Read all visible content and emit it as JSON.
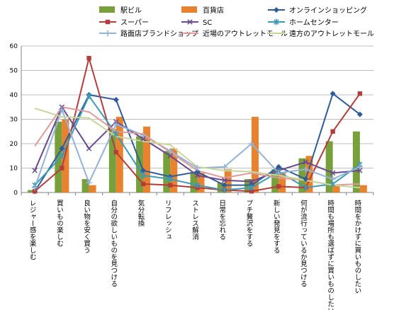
{
  "chart_data": {
    "type": "bar",
    "categories": [
      "レジャー感を楽しむ",
      "買いもの楽しむ",
      "良い物を安く買う",
      "自分の欲しいものを見つける",
      "気分転換",
      "リフレッシュ",
      "ストレス解消",
      "日常を忘れる",
      "プチ贅沢をする",
      "新しい発見をする",
      "何が流行っているか見つける",
      "時間も場所も選ばずに買いものしたい",
      "時間をかけずに買いものしたい"
    ],
    "ylim": [
      0,
      60
    ],
    "yticks": [
      0,
      10,
      20,
      30,
      40,
      50,
      60
    ],
    "grid": true,
    "legend_position": "top",
    "series": [
      {
        "name": "駅ビル",
        "type": "bar",
        "color": "#77A03C",
        "values": [
          1,
          29,
          5.5,
          26,
          23,
          17,
          8,
          4,
          5.5,
          9.5,
          14,
          21,
          25
        ]
      },
      {
        "name": "百貨店",
        "type": "bar",
        "color": "#E8822F",
        "values": [
          0,
          30,
          3,
          31,
          27,
          18,
          8,
          9.5,
          31,
          8,
          15,
          3,
          3
        ]
      },
      {
        "name": "オンラインショッピング",
        "type": "line",
        "color": "#2E5C9A",
        "marker": "diamond",
        "values": [
          0.5,
          18,
          40,
          38,
          9,
          6.5,
          8.5,
          3,
          3,
          10.5,
          5.5,
          40.5,
          32
        ]
      },
      {
        "name": "スーパー",
        "type": "line",
        "color": "#B43C3C",
        "marker": "square",
        "values": [
          0.5,
          10,
          55,
          16.5,
          3.5,
          3,
          2,
          1,
          0.5,
          2.5,
          2,
          25,
          40.5
        ]
      },
      {
        "name": "SC",
        "type": "line",
        "color": "#6A4A8E",
        "marker": "x",
        "values": [
          9,
          35,
          18,
          29,
          22,
          15,
          7,
          5,
          4.5,
          9,
          12.5,
          8,
          9
        ]
      },
      {
        "name": "ホームセンター",
        "type": "line",
        "color": "#3D9BB5",
        "marker": "star",
        "values": [
          3,
          15,
          39.5,
          24,
          7,
          5.5,
          3,
          1,
          2,
          8.5,
          2,
          3.5,
          11.5
        ]
      },
      {
        "name": "路面店ブランドショップ",
        "type": "line",
        "color": "#94B2D8",
        "marker": "plus",
        "values": [
          2,
          34,
          4,
          28,
          23.5,
          17,
          10,
          10.5,
          20,
          8,
          9.5,
          5.5,
          10.5
        ]
      },
      {
        "name": "近場のアウトレットモール",
        "type": "line",
        "color": "#E09A9A",
        "marker": "none",
        "values": [
          19,
          35,
          33,
          25,
          24,
          16.5,
          9,
          6,
          8,
          6,
          5,
          3,
          3.5
        ]
      },
      {
        "name": "遠方のアウトレットモール",
        "type": "line",
        "color": "#C5D89A",
        "marker": "none",
        "values": [
          34.5,
          31,
          30.5,
          23,
          21,
          19.5,
          10.5,
          9,
          8.5,
          7,
          5,
          3,
          2
        ]
      }
    ]
  }
}
